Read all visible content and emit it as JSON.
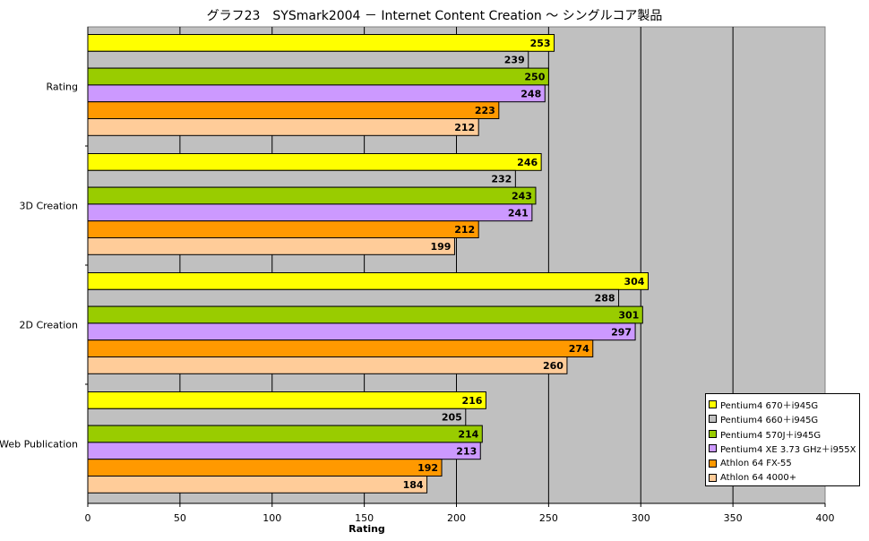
{
  "chart_data": {
    "type": "bar",
    "orientation": "horizontal",
    "title": "グラフ23　SYSmark2004 － Internet Content Creation ～ シングルコア製品",
    "xlabel": "Rating",
    "ylabel": "",
    "xlim": [
      0,
      400
    ],
    "xticks": [
      "0",
      "50",
      "100",
      "150",
      "200",
      "250",
      "300",
      "350",
      "400"
    ],
    "grid": true,
    "legend_position": "right-bottom",
    "plot_background": "#c0c0c0",
    "categories": [
      "Rating",
      "3D Creation",
      "2D Creation",
      "Web Publication"
    ],
    "series": [
      {
        "name": "Pentium4 670＋i945G",
        "color": "#ffff00",
        "values": [
          253,
          246,
          304,
          216
        ]
      },
      {
        "name": "Pentium4 660＋i945G",
        "color": "#c0c0c0",
        "values": [
          239,
          232,
          288,
          205
        ]
      },
      {
        "name": "Pentium4 570J＋i945G",
        "color": "#99cc00",
        "values": [
          250,
          243,
          301,
          214
        ]
      },
      {
        "name": "Pentium4 XE 3.73 GHz＋i955X",
        "color": "#cc99ff",
        "values": [
          248,
          241,
          297,
          213
        ]
      },
      {
        "name": "Athlon 64 FX-55",
        "color": "#ff9900",
        "values": [
          223,
          212,
          274,
          192
        ]
      },
      {
        "name": "Athlon 64 4000+",
        "color": "#ffcc99",
        "values": [
          212,
          199,
          260,
          184
        ]
      }
    ]
  }
}
